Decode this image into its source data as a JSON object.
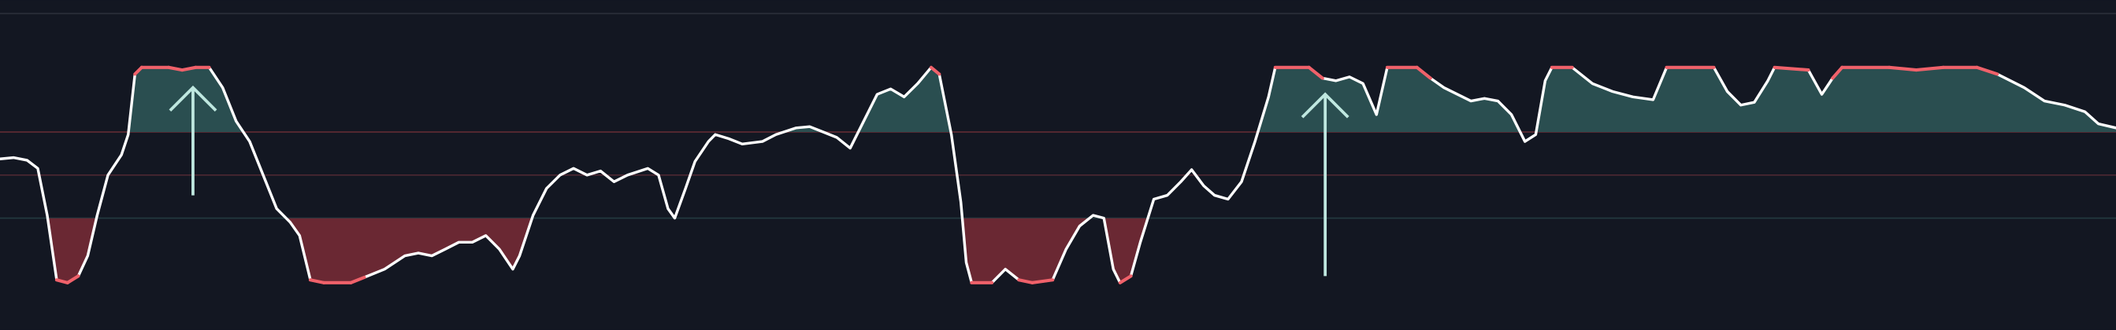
{
  "chart_data": {
    "type": "line",
    "x": [
      0,
      10,
      20,
      28,
      35,
      42,
      50,
      58,
      65,
      72,
      80,
      90,
      95,
      100,
      105,
      125,
      135,
      145,
      155,
      165,
      175,
      185,
      195,
      205,
      215,
      222,
      230,
      240,
      260,
      270,
      285,
      300,
      310,
      320,
      330,
      340,
      350,
      360,
      370,
      380,
      385,
      395,
      405,
      415,
      425,
      435,
      445,
      455,
      465,
      480,
      488,
      495,
      500,
      508,
      515,
      525,
      530,
      540,
      550,
      565,
      575,
      590,
      600,
      610,
      620,
      630,
      640,
      650,
      660,
      670,
      680,
      690,
      696,
      705,
      712,
      716,
      720,
      735,
      745,
      755,
      765,
      780,
      790,
      800,
      810,
      818,
      825,
      830,
      838,
      845,
      855,
      865,
      875,
      883,
      892,
      900,
      910,
      920,
      930,
      940,
      945,
      970,
      980,
      990,
      1000,
      1010,
      1020,
      1028,
      1050,
      1060,
      1070,
      1080,
      1090,
      1100,
      1110,
      1120,
      1130,
      1138,
      1145,
      1150,
      1165,
      1180,
      1195,
      1210,
      1225,
      1235,
      1270,
      1280,
      1290,
      1300,
      1310,
      1315,
      1340,
      1350,
      1358,
      1365,
      1400,
      1420,
      1440,
      1465,
      1480,
      1500,
      1515,
      1530,
      1545,
      1555,
      1568
    ],
    "values": [
      57.5,
      58.1,
      56.9,
      53.1,
      31.3,
      1.3,
      0,
      3.1,
      12.5,
      31.3,
      50,
      59.4,
      68.8,
      96.9,
      100,
      100,
      98.8,
      100,
      100,
      90.6,
      75,
      65.6,
      50,
      34.4,
      28.1,
      21.9,
      1.3,
      0,
      0,
      2.5,
      6.3,
      12.5,
      13.8,
      12.5,
      15.6,
      18.8,
      18.8,
      21.9,
      15.6,
      6.3,
      12.5,
      31.3,
      43.8,
      50,
      53.1,
      50,
      51.9,
      46.9,
      50,
      53.1,
      50,
      34.4,
      30,
      43.8,
      56.3,
      65.6,
      68.8,
      66.9,
      64.4,
      65.6,
      68.8,
      71.9,
      72.5,
      70,
      67.5,
      62.5,
      75,
      87.5,
      90,
      86.3,
      92.5,
      100,
      96.9,
      68.8,
      37.5,
      9.4,
      0,
      0,
      6.3,
      1.3,
      0,
      1.3,
      15.6,
      26.3,
      31.3,
      30,
      6.3,
      0,
      3.1,
      18.8,
      38.8,
      40.6,
      46.9,
      52.5,
      45,
      40.6,
      38.8,
      46.9,
      65.6,
      86.3,
      100,
      100,
      95,
      93.8,
      95.6,
      92.5,
      78.1,
      100,
      100,
      95,
      90.6,
      87.5,
      84.4,
      85.6,
      84.4,
      78.1,
      65.6,
      68.8,
      93.8,
      100,
      100,
      92.5,
      88.8,
      86.3,
      85,
      100,
      100,
      88.8,
      82.5,
      83.8,
      93.8,
      100,
      98.8,
      87.5,
      95,
      100,
      100,
      98.8,
      100,
      100,
      96.9,
      90.6,
      84.4,
      82.5,
      79.4,
      73.8,
      71.9
    ],
    "line_color": "#ffffff",
    "extreme_color": "#f0616a",
    "extreme_upper": 95,
    "extreme_lower": 5,
    "upper": 70,
    "lower": 30,
    "upper_fill": "#2a4e50",
    "lower_fill": "#6a2833",
    "levels": [
      {
        "value": 70,
        "color": "#5c2a33"
      },
      {
        "value": 50,
        "color": "#4d2832"
      },
      {
        "value": 30,
        "color": "#1e3a40"
      }
    ],
    "signals": [
      {
        "x": 143,
        "from": 40.6,
        "to": 90.6,
        "color": "#bfe8e0"
      },
      {
        "x": 982,
        "from": 3.1,
        "to": 87.5,
        "color": "#bfe8e0"
      }
    ],
    "xlim": [
      0,
      1568
    ],
    "ylim": [
      -21.9,
      125
    ]
  }
}
